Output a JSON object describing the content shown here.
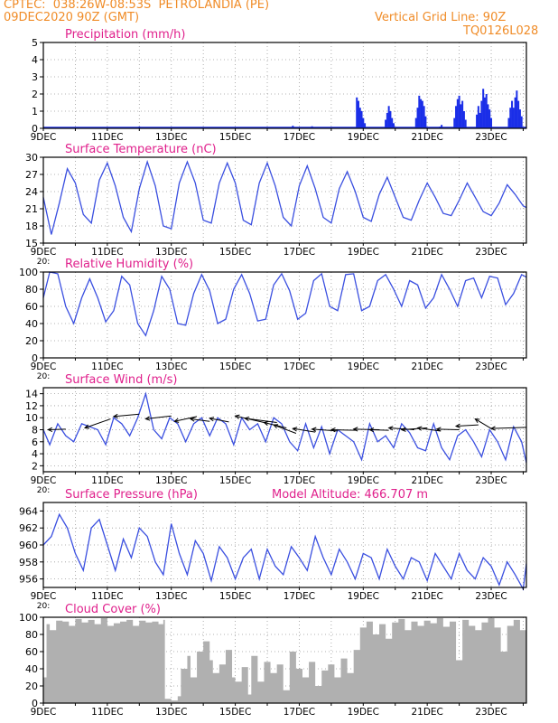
{
  "header": {
    "line1": "CPTEC:  038:26W-08:53S  PETROLANDIA (PE)",
    "line2": "09DEC2020 90Z (GMT)",
    "grid_note": "Vertical Grid Line: 90Z",
    "code": "TQ0126L028"
  },
  "colors": {
    "header": "#f08c28",
    "title": "#e0208c",
    "line": "#3a4fe0",
    "bar": "#1a2ee8",
    "cloud": "#b0b0b0",
    "arrow": "#000000",
    "grid": "#9a9a9a"
  },
  "x_tick_labels": [
    "9DEC",
    "11DEC",
    "13DEC",
    "15DEC",
    "17DEC",
    "19DEC",
    "21DEC",
    "23DEC"
  ],
  "cut_label": "20:",
  "chart_data": [
    {
      "id": "precipitation",
      "type": "bar",
      "title": "Precipitation (mm/h)",
      "xlim": [
        9,
        24.1
      ],
      "ylim": [
        0,
        5
      ],
      "yticks": [
        0,
        1,
        2,
        3,
        4,
        5
      ],
      "bars": [
        [
          12.0,
          0.1
        ],
        [
          13.4,
          0.05
        ],
        [
          15.2,
          0.05
        ],
        [
          16.8,
          0.15
        ],
        [
          17.4,
          0.12
        ],
        [
          17.6,
          0.08
        ],
        [
          18.8,
          1.8
        ],
        [
          18.85,
          1.6
        ],
        [
          18.9,
          1.2
        ],
        [
          18.95,
          1.0
        ],
        [
          19.0,
          0.6
        ],
        [
          19.05,
          0.3
        ],
        [
          19.7,
          0.5
        ],
        [
          19.75,
          0.9
        ],
        [
          19.8,
          1.3
        ],
        [
          19.85,
          1.0
        ],
        [
          19.9,
          0.6
        ],
        [
          19.95,
          0.3
        ],
        [
          20.65,
          0.6
        ],
        [
          20.7,
          1.2
        ],
        [
          20.75,
          1.9
        ],
        [
          20.8,
          1.7
        ],
        [
          20.85,
          1.6
        ],
        [
          20.9,
          1.3
        ],
        [
          20.95,
          0.7
        ],
        [
          21.4,
          0.1
        ],
        [
          21.45,
          0.2
        ],
        [
          21.85,
          0.6
        ],
        [
          21.9,
          1.3
        ],
        [
          21.95,
          1.7
        ],
        [
          22.0,
          1.9
        ],
        [
          22.05,
          1.4
        ],
        [
          22.1,
          1.6
        ],
        [
          22.15,
          1.0
        ],
        [
          22.2,
          0.5
        ],
        [
          22.55,
          0.8
        ],
        [
          22.6,
          1.3
        ],
        [
          22.65,
          0.9
        ],
        [
          22.7,
          1.6
        ],
        [
          22.75,
          2.3
        ],
        [
          22.8,
          1.8
        ],
        [
          22.85,
          2.0
        ],
        [
          22.9,
          1.4
        ],
        [
          22.95,
          1.1
        ],
        [
          23.0,
          0.6
        ],
        [
          23.55,
          0.6
        ],
        [
          23.6,
          1.2
        ],
        [
          23.65,
          1.6
        ],
        [
          23.7,
          1.2
        ],
        [
          23.75,
          1.8
        ],
        [
          23.8,
          2.2
        ],
        [
          23.85,
          1.6
        ],
        [
          23.9,
          1.1
        ],
        [
          23.95,
          0.7
        ]
      ]
    },
    {
      "id": "temperature",
      "type": "line",
      "title": "Surface Temperature (nC)",
      "xlim": [
        9,
        24.1
      ],
      "ylim": [
        15,
        30
      ],
      "yticks": [
        15,
        18,
        21,
        24,
        27,
        30
      ],
      "x": [
        9.0,
        9.25,
        9.5,
        9.75,
        10.0,
        10.25,
        10.5,
        10.75,
        11.0,
        11.25,
        11.5,
        11.75,
        12.0,
        12.25,
        12.5,
        12.75,
        13.0,
        13.25,
        13.5,
        13.75,
        14.0,
        14.25,
        14.5,
        14.75,
        15.0,
        15.25,
        15.5,
        15.75,
        16.0,
        16.25,
        16.5,
        16.75,
        17.0,
        17.25,
        17.5,
        17.75,
        18.0,
        18.25,
        18.5,
        18.75,
        19.0,
        19.25,
        19.5,
        19.75,
        20.0,
        20.25,
        20.5,
        20.75,
        21.0,
        21.25,
        21.5,
        21.75,
        22.0,
        22.25,
        22.5,
        22.75,
        23.0,
        23.25,
        23.5,
        23.75,
        24.0,
        24.1
      ],
      "y": [
        23,
        16.5,
        22,
        28,
        25.5,
        20,
        18.5,
        26,
        29,
        25,
        19.5,
        17,
        24.5,
        29.2,
        25,
        18,
        17.5,
        25.5,
        29.2,
        25.5,
        19,
        18.5,
        25.5,
        29,
        25.5,
        19,
        18.2,
        25.5,
        29,
        25,
        19.5,
        18,
        25,
        28.5,
        24.5,
        19.5,
        18.5,
        24.5,
        27.5,
        24,
        19.5,
        18.8,
        23.5,
        26.5,
        23,
        19.5,
        19,
        22.5,
        25.5,
        23,
        20.2,
        19.8,
        22.5,
        25.5,
        23,
        20.5,
        19.8,
        22,
        25.2,
        23.5,
        21.5,
        21.2
      ],
      "xticks_cut": true
    },
    {
      "id": "humidity",
      "type": "line",
      "title": "Relative Humidity (%)",
      "xlim": [
        9,
        24.1
      ],
      "ylim": [
        0,
        100
      ],
      "yticks": [
        0,
        20,
        40,
        60,
        80,
        100
      ],
      "x": [
        9.0,
        9.2,
        9.45,
        9.7,
        9.95,
        10.2,
        10.45,
        10.7,
        10.95,
        11.2,
        11.45,
        11.7,
        11.95,
        12.2,
        12.45,
        12.7,
        12.95,
        13.2,
        13.45,
        13.7,
        13.95,
        14.2,
        14.45,
        14.7,
        14.95,
        15.2,
        15.45,
        15.7,
        15.95,
        16.2,
        16.45,
        16.7,
        16.95,
        17.2,
        17.45,
        17.7,
        17.95,
        18.2,
        18.45,
        18.7,
        18.95,
        19.2,
        19.45,
        19.7,
        19.95,
        20.2,
        20.45,
        20.7,
        20.95,
        21.2,
        21.45,
        21.7,
        21.95,
        22.2,
        22.45,
        22.7,
        22.95,
        23.2,
        23.45,
        23.7,
        23.95,
        24.1
      ],
      "y": [
        70,
        100,
        98,
        60,
        40,
        70,
        92,
        70,
        42,
        55,
        95,
        85,
        40,
        26,
        55,
        95,
        80,
        40,
        38,
        75,
        97,
        78,
        40,
        45,
        80,
        97,
        75,
        43,
        45,
        85,
        98,
        78,
        45,
        52,
        90,
        98,
        60,
        55,
        97,
        98,
        55,
        60,
        90,
        97,
        80,
        60,
        90,
        85,
        58,
        70,
        97,
        80,
        60,
        90,
        93,
        70,
        95,
        93,
        62,
        75,
        97,
        94
      ],
      "xticks_cut": true
    },
    {
      "id": "wind",
      "type": "line",
      "title": "Surface Wind (m/s)",
      "xlim": [
        9,
        24.1
      ],
      "ylim": [
        1,
        15
      ],
      "yticks": [
        2,
        4,
        6,
        8,
        10,
        12,
        14
      ],
      "x": [
        9.0,
        9.2,
        9.45,
        9.7,
        9.95,
        10.2,
        10.45,
        10.7,
        10.95,
        11.2,
        11.45,
        11.7,
        11.95,
        12.2,
        12.45,
        12.7,
        12.95,
        13.2,
        13.45,
        13.7,
        13.95,
        14.2,
        14.45,
        14.7,
        14.95,
        15.2,
        15.45,
        15.7,
        15.95,
        16.2,
        16.45,
        16.7,
        16.95,
        17.2,
        17.45,
        17.7,
        17.95,
        18.2,
        18.45,
        18.7,
        18.95,
        19.2,
        19.45,
        19.7,
        19.95,
        20.2,
        20.45,
        20.7,
        20.95,
        21.2,
        21.45,
        21.7,
        21.95,
        22.2,
        22.45,
        22.7,
        22.95,
        23.2,
        23.45,
        23.7,
        23.95,
        24.1
      ],
      "y": [
        8,
        5.5,
        9,
        7,
        6,
        9,
        8.5,
        8,
        5.5,
        10,
        9,
        7,
        10,
        14,
        8,
        6.5,
        10,
        9,
        6,
        9,
        10,
        7,
        10,
        9,
        5.5,
        10,
        8,
        9,
        6,
        10,
        9,
        6,
        4.5,
        9,
        5,
        8.5,
        4,
        8,
        7,
        6,
        3,
        9,
        6,
        7,
        5,
        9,
        7.5,
        5,
        4.5,
        9,
        5,
        3,
        7,
        8,
        6,
        3.5,
        8,
        6,
        3,
        8.5,
        6,
        2.5
      ],
      "arrows": [
        [
          9.15,
          8,
          9.7,
          8.1
        ],
        [
          10.3,
          8.3,
          11.1,
          9.8
        ],
        [
          11.2,
          10.2,
          12.0,
          10.6
        ],
        [
          12.2,
          9.8,
          13.0,
          10.3
        ],
        [
          13.1,
          9.4,
          13.8,
          10.2
        ],
        [
          13.6,
          9.8,
          14.2,
          9.4
        ],
        [
          14.2,
          9.9,
          14.8,
          9.3
        ],
        [
          15.0,
          10.3,
          15.9,
          9.2
        ],
        [
          15.3,
          9.9,
          16.3,
          9.2
        ],
        [
          15.9,
          9.2,
          16.6,
          8.3
        ],
        [
          16.2,
          8.8,
          16.9,
          7.4
        ],
        [
          16.8,
          8.2,
          17.5,
          7.6
        ],
        [
          17.4,
          8.1,
          18.2,
          7.8
        ],
        [
          18.0,
          8.0,
          18.8,
          7.9
        ],
        [
          18.7,
          8.1,
          19.5,
          8.0
        ],
        [
          19.2,
          8.0,
          19.8,
          7.9
        ],
        [
          19.8,
          8.3,
          20.6,
          8.0
        ],
        [
          20.2,
          8.0,
          21.0,
          8.3
        ],
        [
          20.7,
          8.3,
          21.4,
          7.8
        ],
        [
          21.3,
          8.1,
          22.0,
          8.0
        ],
        [
          21.9,
          8.6,
          22.6,
          8.8
        ],
        [
          22.5,
          9.8,
          23.0,
          8.2
        ],
        [
          23.0,
          8.2,
          24.1,
          8.4
        ]
      ],
      "xticks_cut": true
    },
    {
      "id": "pressure",
      "type": "line",
      "title": "Surface Pressure (hPa)",
      "altitude": "Model Altitude: 466.707 m",
      "xlim": [
        9,
        24.1
      ],
      "ylim": [
        955,
        965
      ],
      "yticks": [
        956,
        958,
        960,
        962,
        964
      ],
      "x": [
        9.0,
        9.25,
        9.5,
        9.75,
        10.0,
        10.25,
        10.5,
        10.75,
        11.0,
        11.25,
        11.5,
        11.75,
        12.0,
        12.25,
        12.5,
        12.75,
        13.0,
        13.25,
        13.5,
        13.75,
        14.0,
        14.25,
        14.5,
        14.75,
        15.0,
        15.25,
        15.5,
        15.75,
        16.0,
        16.25,
        16.5,
        16.75,
        17.0,
        17.25,
        17.5,
        17.75,
        18.0,
        18.25,
        18.5,
        18.75,
        19.0,
        19.25,
        19.5,
        19.75,
        20.0,
        20.25,
        20.5,
        20.75,
        21.0,
        21.25,
        21.5,
        21.75,
        22.0,
        22.25,
        22.5,
        22.75,
        23.0,
        23.25,
        23.5,
        23.75,
        24.0,
        24.1
      ],
      "y": [
        960,
        961,
        963.6,
        962,
        959,
        957,
        962,
        963,
        960,
        957,
        960.7,
        958.5,
        962,
        961,
        958,
        956.5,
        962.5,
        959,
        956.5,
        960.5,
        959,
        955.8,
        959.8,
        958.5,
        956,
        958.5,
        959.5,
        956,
        959.5,
        957.5,
        956.5,
        959.8,
        958.5,
        957,
        961,
        958.5,
        956.5,
        959.5,
        958,
        956,
        959,
        958.5,
        956,
        959.5,
        957.5,
        956,
        958.5,
        958,
        955.8,
        959,
        957.5,
        956,
        959,
        957,
        956,
        958.5,
        957.5,
        955.3,
        958,
        956.5,
        954.8,
        957.8
      ],
      "xticks_cut": true
    },
    {
      "id": "cloud",
      "type": "area",
      "title": "Cloud Cover (%)",
      "xlim": [
        9,
        24.1
      ],
      "ylim": [
        0,
        100
      ],
      "yticks": [
        0,
        20,
        40,
        60,
        80,
        100
      ],
      "x": [
        9.0,
        9.1,
        9.2,
        9.4,
        9.6,
        9.8,
        10.0,
        10.2,
        10.4,
        10.6,
        10.8,
        11.0,
        11.2,
        11.4,
        11.6,
        11.8,
        12.0,
        12.2,
        12.4,
        12.6,
        12.75,
        12.8,
        13.0,
        13.2,
        13.3,
        13.5,
        13.6,
        13.8,
        14.0,
        14.2,
        14.3,
        14.5,
        14.7,
        14.9,
        15.0,
        15.2,
        15.4,
        15.5,
        15.7,
        15.9,
        16.1,
        16.3,
        16.5,
        16.7,
        16.9,
        17.1,
        17.3,
        17.5,
        17.7,
        17.9,
        18.1,
        18.3,
        18.5,
        18.7,
        18.9,
        19.1,
        19.3,
        19.5,
        19.7,
        19.9,
        20.1,
        20.3,
        20.5,
        20.7,
        20.9,
        21.1,
        21.3,
        21.5,
        21.7,
        21.9,
        22.1,
        22.3,
        22.5,
        22.7,
        22.9,
        23.1,
        23.3,
        23.5,
        23.7,
        23.9,
        24.1
      ],
      "y": [
        30,
        92,
        85,
        96,
        95,
        90,
        98,
        94,
        97,
        92,
        99,
        90,
        93,
        95,
        97,
        90,
        96,
        94,
        95,
        92,
        97,
        5,
        3,
        8,
        40,
        55,
        30,
        60,
        72,
        50,
        35,
        45,
        62,
        30,
        25,
        42,
        10,
        55,
        25,
        48,
        35,
        45,
        15,
        60,
        40,
        30,
        48,
        20,
        38,
        45,
        30,
        52,
        35,
        62,
        88,
        95,
        80,
        92,
        75,
        94,
        98,
        85,
        95,
        90,
        96,
        93,
        99,
        89,
        95,
        50,
        97,
        90,
        85,
        94,
        99,
        88,
        60,
        90,
        97,
        85,
        95
      ],
      "xticks_cut": false
    }
  ]
}
